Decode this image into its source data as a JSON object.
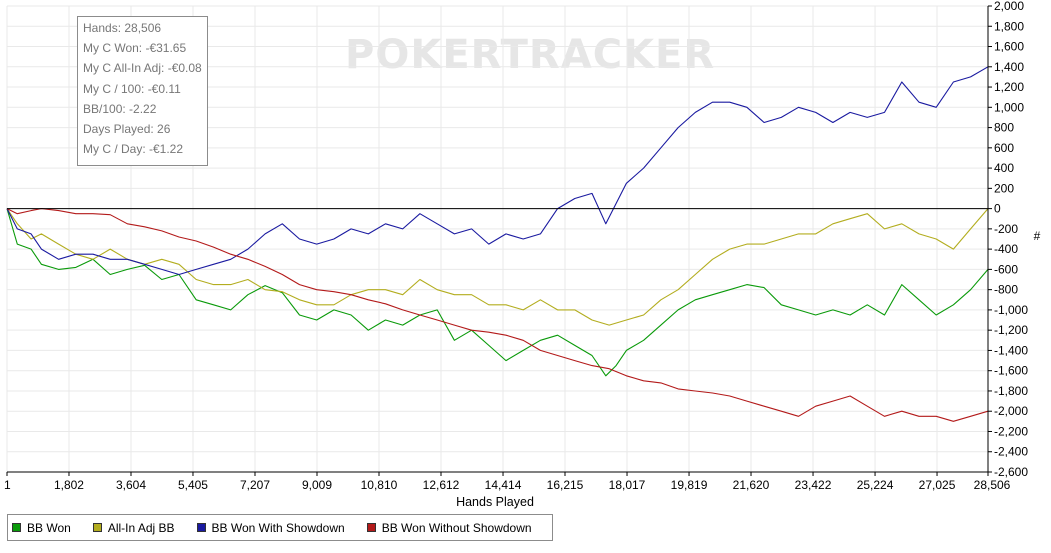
{
  "watermark": "POKERTRACKER",
  "stats": [
    "Hands: 28,506",
    "My C Won: -€31.65",
    "My C All-In Adj: -€0.08",
    "My C / 100: -€0.11",
    "BB/100: -2.22",
    "Days Played: 26",
    "My C / Day: -€1.22"
  ],
  "chart_data": {
    "type": "line",
    "xlabel": "Hands Played",
    "ylabel": "#",
    "xlim": [
      1,
      28506
    ],
    "ylim": [
      -2600,
      2000
    ],
    "x_ticks": [
      "1",
      "1,802",
      "3,604",
      "5,405",
      "7,207",
      "9,009",
      "10,810",
      "12,612",
      "14,414",
      "16,215",
      "18,017",
      "19,819",
      "21,620",
      "23,422",
      "25,224",
      "27,025",
      "28,506"
    ],
    "x_tick_values": [
      1,
      1802,
      3604,
      5405,
      7207,
      9009,
      10810,
      12612,
      14414,
      16215,
      18017,
      19819,
      21620,
      23422,
      25224,
      27025,
      28506
    ],
    "y_ticks": [
      "2,000",
      "1,800",
      "1,600",
      "1,400",
      "1,200",
      "1,000",
      "800",
      "600",
      "400",
      "200",
      "0",
      "-200",
      "-400",
      "-600",
      "-800",
      "-1,000",
      "-1,200",
      "-1,400",
      "-1,600",
      "-1,800",
      "-2,000",
      "-2,200",
      "-2,400",
      "-2,600"
    ],
    "y_tick_values": [
      2000,
      1800,
      1600,
      1400,
      1200,
      1000,
      800,
      600,
      400,
      200,
      0,
      -200,
      -400,
      -600,
      -800,
      -1000,
      -1200,
      -1400,
      -1600,
      -1800,
      -2000,
      -2200,
      -2400,
      -2600
    ],
    "grid": true,
    "legend_position": "bottom-left",
    "series": [
      {
        "name": "BB Won",
        "color": "#0a9a0a",
        "x": [
          1,
          300,
          700,
          1000,
          1500,
          2000,
          2500,
          3000,
          3500,
          4000,
          4500,
          5000,
          5500,
          6000,
          6500,
          7000,
          7500,
          8000,
          8500,
          9000,
          9500,
          10000,
          10500,
          11000,
          11500,
          12000,
          12500,
          13000,
          13500,
          14000,
          14500,
          15000,
          15500,
          16000,
          16500,
          17000,
          17400,
          17700,
          18000,
          18500,
          19000,
          19500,
          20000,
          20500,
          21000,
          21500,
          22000,
          22500,
          23000,
          23500,
          24000,
          24500,
          25000,
          25500,
          26000,
          26500,
          27000,
          27500,
          28000,
          28506
        ],
        "y": [
          0,
          -350,
          -400,
          -550,
          -600,
          -580,
          -500,
          -650,
          -600,
          -560,
          -700,
          -650,
          -900,
          -950,
          -1000,
          -850,
          -760,
          -830,
          -1050,
          -1100,
          -1000,
          -1050,
          -1200,
          -1100,
          -1150,
          -1050,
          -1000,
          -1300,
          -1200,
          -1350,
          -1500,
          -1400,
          -1300,
          -1250,
          -1350,
          -1450,
          -1650,
          -1550,
          -1400,
          -1300,
          -1150,
          -1000,
          -900,
          -850,
          -800,
          -750,
          -780,
          -950,
          -1000,
          -1050,
          -1000,
          -1050,
          -950,
          -1050,
          -750,
          -900,
          -1050,
          -950,
          -800,
          -600
        ]
      },
      {
        "name": "All-In Adj BB",
        "color": "#b3ad1f",
        "x": [
          1,
          300,
          700,
          1000,
          1500,
          2000,
          2500,
          3000,
          3500,
          4000,
          4500,
          5000,
          5500,
          6000,
          6500,
          7000,
          7500,
          8000,
          8500,
          9000,
          9500,
          10000,
          10500,
          11000,
          11500,
          12000,
          12500,
          13000,
          13500,
          14000,
          14500,
          15000,
          15500,
          16000,
          16500,
          17000,
          17500,
          18000,
          18500,
          19000,
          19500,
          20000,
          20500,
          21000,
          21500,
          22000,
          22500,
          23000,
          23500,
          24000,
          24500,
          25000,
          25500,
          26000,
          26500,
          27000,
          27500,
          28000,
          28506
        ],
        "y": [
          0,
          -150,
          -300,
          -250,
          -350,
          -450,
          -500,
          -400,
          -500,
          -550,
          -500,
          -550,
          -700,
          -750,
          -750,
          -700,
          -800,
          -820,
          -900,
          -950,
          -950,
          -850,
          -800,
          -800,
          -850,
          -700,
          -800,
          -850,
          -850,
          -950,
          -950,
          -1000,
          -900,
          -1000,
          -1000,
          -1100,
          -1150,
          -1100,
          -1050,
          -900,
          -800,
          -650,
          -500,
          -400,
          -350,
          -350,
          -300,
          -250,
          -250,
          -150,
          -100,
          -50,
          -200,
          -150,
          -250,
          -300,
          -400,
          -200,
          0
        ]
      },
      {
        "name": "BB Won With Showdown",
        "color": "#1a1aa0",
        "x": [
          1,
          300,
          700,
          1000,
          1500,
          2000,
          2500,
          3000,
          3500,
          4000,
          4500,
          5000,
          5500,
          6000,
          6500,
          7000,
          7500,
          8000,
          8500,
          9000,
          9500,
          10000,
          10500,
          11000,
          11500,
          12000,
          12500,
          13000,
          13500,
          14000,
          14500,
          15000,
          15500,
          16000,
          16500,
          17000,
          17400,
          17700,
          18000,
          18500,
          19000,
          19500,
          20000,
          20500,
          21000,
          21500,
          22000,
          22500,
          23000,
          23500,
          24000,
          24500,
          25000,
          25500,
          26000,
          26500,
          27000,
          27500,
          28000,
          28506
        ],
        "y": [
          0,
          -200,
          -250,
          -400,
          -500,
          -450,
          -450,
          -500,
          -500,
          -550,
          -600,
          -650,
          -600,
          -550,
          -500,
          -400,
          -250,
          -150,
          -300,
          -350,
          -300,
          -200,
          -250,
          -150,
          -200,
          -50,
          -150,
          -250,
          -200,
          -350,
          -250,
          -300,
          -250,
          0,
          100,
          150,
          -150,
          50,
          250,
          400,
          600,
          800,
          950,
          1050,
          1050,
          1000,
          850,
          900,
          1000,
          950,
          850,
          950,
          900,
          950,
          1250,
          1050,
          1000,
          1250,
          1300,
          1400
        ]
      },
      {
        "name": "BB Won Without Showdown",
        "color": "#b31a1a",
        "x": [
          1,
          300,
          700,
          1000,
          1500,
          2000,
          2500,
          3000,
          3500,
          4000,
          4500,
          5000,
          5500,
          6000,
          6500,
          7000,
          7500,
          8000,
          8500,
          9000,
          9500,
          10000,
          10500,
          11000,
          11500,
          12000,
          12500,
          13000,
          13500,
          14000,
          14500,
          15000,
          15500,
          16000,
          16500,
          17000,
          17500,
          18000,
          18500,
          19000,
          19500,
          20000,
          20500,
          21000,
          21500,
          22000,
          22500,
          23000,
          23500,
          24000,
          24500,
          25000,
          25500,
          26000,
          26500,
          27000,
          27500,
          28000,
          28506
        ],
        "y": [
          0,
          -50,
          -20,
          0,
          -20,
          -50,
          -50,
          -60,
          -150,
          -180,
          -220,
          -280,
          -320,
          -380,
          -450,
          -500,
          -570,
          -650,
          -750,
          -800,
          -820,
          -850,
          -900,
          -940,
          -1000,
          -1050,
          -1100,
          -1150,
          -1200,
          -1220,
          -1250,
          -1300,
          -1400,
          -1450,
          -1500,
          -1550,
          -1580,
          -1650,
          -1700,
          -1720,
          -1780,
          -1800,
          -1820,
          -1850,
          -1900,
          -1950,
          -2000,
          -2050,
          -1950,
          -1900,
          -1850,
          -1950,
          -2050,
          -2000,
          -2050,
          -2050,
          -2100,
          -2050,
          -2000
        ]
      }
    ]
  }
}
